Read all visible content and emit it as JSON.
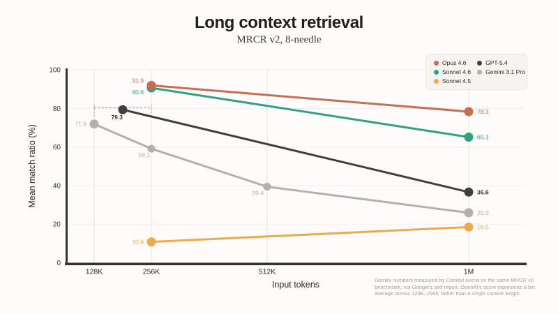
{
  "title": "Long context retrieval",
  "subtitle": "MRCR v2, 8-needle",
  "footnote": "Gemini numbers measured by Context Arena on the same MRCR v2 benchmark, not Google's self-report. OpenAI's score represents a bin average across 128K–256K rather than a single context length.",
  "chart_data": {
    "type": "line",
    "title": "Long context retrieval",
    "subtitle": "MRCR v2, 8-needle",
    "xlabel": "Input tokens",
    "ylabel": "Mean match ratio (%)",
    "x_categories": [
      "128K",
      "256K",
      "512K",
      "1M"
    ],
    "yticks": [
      0,
      20,
      40,
      60,
      80,
      100
    ],
    "ylim": [
      0,
      100
    ],
    "grid": true,
    "legend_position": "top-right",
    "colors": {
      "opus_46": "#C96D52",
      "sonnet_46": "#32A183",
      "sonnet_45": "#ECA94D",
      "gpt_54": "#413F3B",
      "gemini_31_pro": "#B3B0A9"
    },
    "series": [
      {
        "name": "Opus 4.6",
        "color": "#C96D52",
        "points": [
          {
            "x": "256K",
            "y": 91.9
          },
          {
            "x": "1M",
            "y": 78.3
          }
        ]
      },
      {
        "name": "Sonnet 4.6",
        "color": "#32A183",
        "points": [
          {
            "x": "256K",
            "y": 90.6
          },
          {
            "x": "1M",
            "y": 65.1
          }
        ]
      },
      {
        "name": "Sonnet 4.5",
        "color": "#ECA94D",
        "points": [
          {
            "x": "256K",
            "y": 10.8
          },
          {
            "x": "1M",
            "y": 18.5
          }
        ]
      },
      {
        "name": "GPT-5.4",
        "color": "#413F3B",
        "points": [
          {
            "x": "128K–256K",
            "y": 79.3,
            "bin_range": [
              "128K",
              "256K"
            ]
          },
          {
            "x": "1M",
            "y": 36.6
          }
        ]
      },
      {
        "name": "Gemini 3.1 Pro",
        "color": "#B3B0A9",
        "points": [
          {
            "x": "128K",
            "y": 71.9
          },
          {
            "x": "256K",
            "y": 59.1
          },
          {
            "x": "512K",
            "y": 39.4
          },
          {
            "x": "1M",
            "y": 25.9
          }
        ]
      }
    ]
  }
}
